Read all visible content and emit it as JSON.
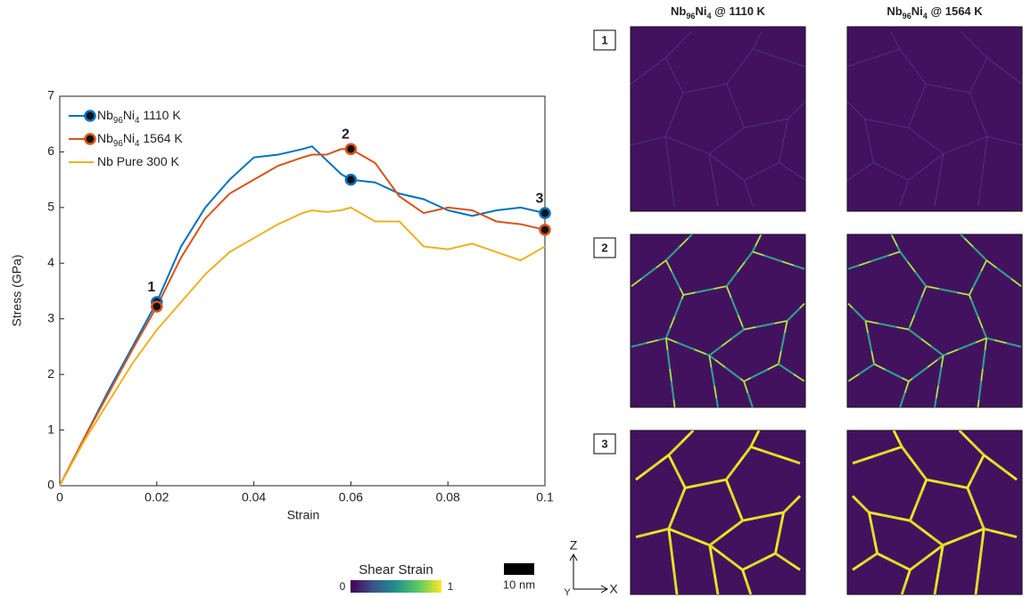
{
  "chart_data": {
    "type": "line",
    "xlabel": "Strain",
    "ylabel": "Stress (GPa)",
    "x": [
      0,
      0.005,
      0.01,
      0.015,
      0.02,
      0.025,
      0.03,
      0.035,
      0.04,
      0.045,
      0.05,
      0.052,
      0.055,
      0.058,
      0.06,
      0.065,
      0.07,
      0.075,
      0.08,
      0.085,
      0.09,
      0.095,
      0.1
    ],
    "series": [
      {
        "name": "Nb96Ni4 1110 K",
        "color": "#0072bd",
        "markers": true,
        "values": [
          0,
          0.85,
          1.7,
          2.5,
          3.3,
          4.3,
          5.0,
          5.5,
          5.9,
          5.95,
          6.05,
          6.1,
          5.85,
          5.6,
          5.5,
          5.45,
          5.25,
          5.15,
          4.95,
          4.85,
          4.95,
          5.0,
          4.9
        ]
      },
      {
        "name": "Nb96Ni4 1564 K",
        "color": "#d95319",
        "markers": true,
        "values": [
          0,
          0.85,
          1.65,
          2.45,
          3.22,
          4.1,
          4.8,
          5.25,
          5.5,
          5.75,
          5.9,
          5.95,
          5.95,
          6.05,
          6.05,
          5.8,
          5.2,
          4.9,
          5.0,
          4.95,
          4.75,
          4.7,
          4.6
        ]
      },
      {
        "name": "Nb Pure 300 K",
        "color": "#edb120",
        "markers": false,
        "values": [
          0,
          0.8,
          1.5,
          2.2,
          2.8,
          3.3,
          3.8,
          4.2,
          4.45,
          4.7,
          4.9,
          4.95,
          4.92,
          4.95,
          5.0,
          4.75,
          4.75,
          4.3,
          4.25,
          4.35,
          4.2,
          4.05,
          4.3
        ]
      }
    ],
    "annotations": [
      {
        "text": "1",
        "x": 0.02
      },
      {
        "text": "2",
        "x": 0.06
      },
      {
        "text": "3",
        "x": 0.1
      }
    ],
    "xlim": [
      0,
      0.1
    ],
    "xticks": [
      0,
      0.02,
      0.04,
      0.06,
      0.08,
      0.1
    ],
    "ylim": [
      0,
      7
    ],
    "yticks": [
      0,
      1,
      2,
      3,
      4,
      5,
      6,
      7
    ],
    "legend": "upper left",
    "grid": false
  },
  "panels": {
    "columns": [
      "Nb96Ni4 @ 1110 K",
      "Nb96Ni4 @ 1564 K"
    ],
    "rows": [
      "1",
      "2",
      "3"
    ],
    "colorbar": {
      "label": "Shear Strain",
      "ticks": [
        0,
        1
      ]
    },
    "scale_bar": "10 nm",
    "axes": [
      "Z",
      "X",
      "Y"
    ]
  }
}
